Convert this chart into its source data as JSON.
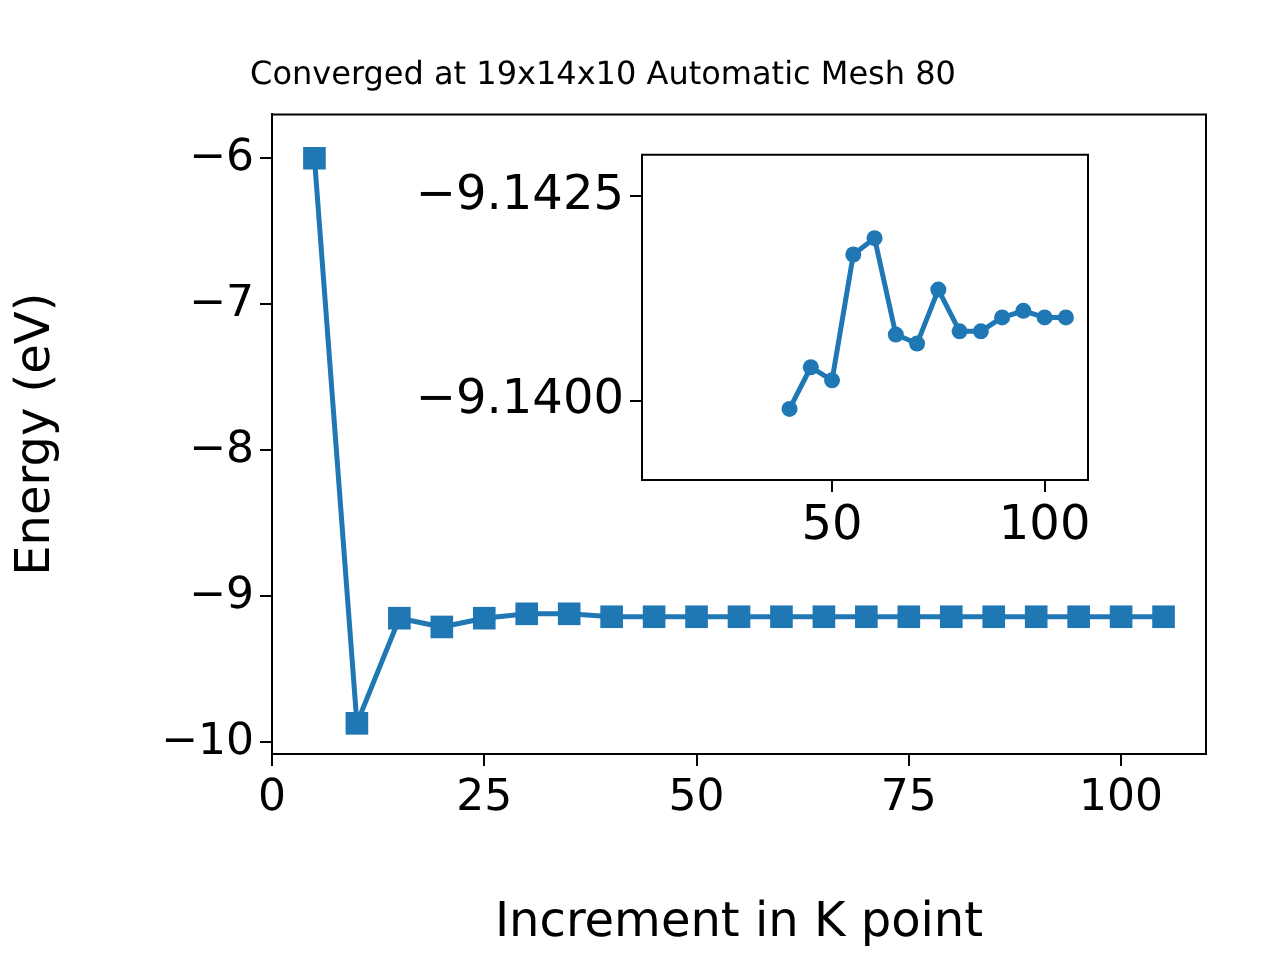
{
  "chart_data": [
    {
      "type": "line",
      "title": "Converged at 19x14x10 Automatic Mesh 80",
      "xlabel": "Increment in K point",
      "ylabel": "Energy (eV)",
      "marker": "square",
      "grid": false,
      "x": [
        5,
        10,
        15,
        20,
        25,
        30,
        35,
        40,
        45,
        50,
        55,
        60,
        65,
        70,
        75,
        80,
        85,
        90,
        95,
        100,
        105
      ],
      "series": [
        {
          "color": "#1f77b4",
          "values": [
            -6.0,
            -9.87,
            -9.15,
            -9.21,
            -9.15,
            -9.12,
            -9.12,
            -9.14,
            -9.14,
            -9.14,
            -9.14,
            -9.14,
            -9.14,
            -9.14,
            -9.14,
            -9.14,
            -9.14,
            -9.14,
            -9.14,
            -9.14,
            -9.14
          ]
        }
      ],
      "xlim": [
        0,
        110
      ],
      "xticks": [
        0,
        25,
        50,
        75,
        100
      ],
      "ylim": [
        -10.08,
        -5.7
      ],
      "yticks": [
        {
          "value": -10,
          "label": "−10"
        },
        {
          "value": -9,
          "label": "−9"
        },
        {
          "value": -8,
          "label": "−8"
        },
        {
          "value": -7,
          "label": "−7"
        },
        {
          "value": -6,
          "label": "−6"
        }
      ]
    },
    {
      "type": "line",
      "marker": "circle",
      "grid": false,
      "x": [
        40,
        45,
        50,
        55,
        60,
        65,
        70,
        75,
        80,
        85,
        90,
        95,
        100,
        105
      ],
      "series": [
        {
          "color": "#1f77b4",
          "values": [
            -9.1399,
            -9.14041,
            -9.14025,
            -9.14179,
            -9.14199,
            -9.14081,
            -9.1407,
            -9.14136,
            -9.14085,
            -9.14085,
            -9.14102,
            -9.1411,
            -9.14102,
            -9.14102
          ]
        }
      ],
      "xlim": [
        5.3,
        110.2
      ],
      "xticks": [
        50,
        100
      ],
      "ylim": [
        -9.13903,
        -9.14301
      ],
      "yticks": [
        {
          "value": -9.1425,
          "label": "−9.1425"
        },
        {
          "value": -9.14,
          "label": "−9.1400"
        }
      ]
    }
  ]
}
